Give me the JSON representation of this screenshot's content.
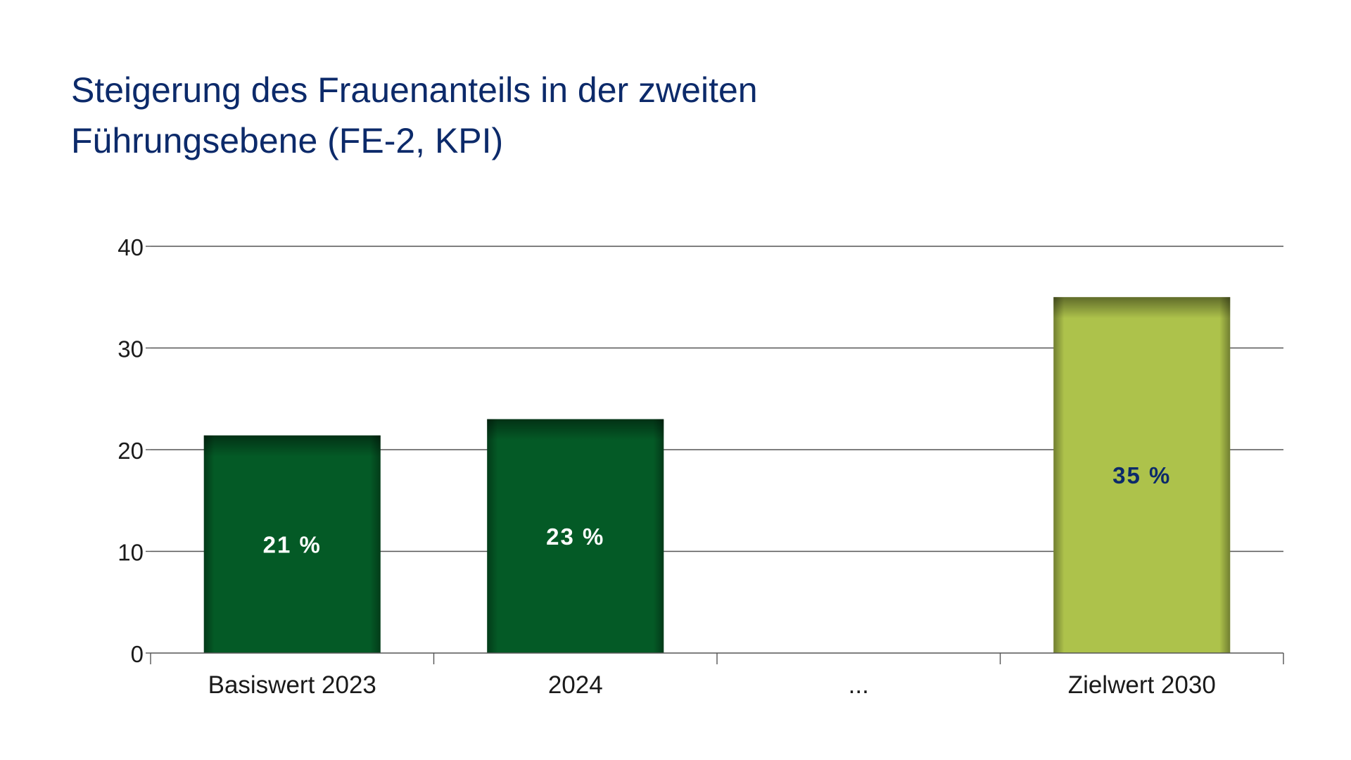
{
  "chart_data": {
    "type": "bar",
    "title": "Steigerung des Frauenanteils in der zweiten\nFührungsebene (FE-2, KPI)",
    "categories": [
      "Basiswert 2023",
      "2024",
      "...",
      "Zielwert 2030"
    ],
    "values": [
      21.4,
      23,
      null,
      35
    ],
    "data_labels": [
      "21 %",
      "23 %",
      "",
      "35 %"
    ],
    "ylim": [
      0,
      40
    ],
    "yticks": [
      0,
      10,
      20,
      30,
      40
    ],
    "ytick_labels": [
      "0",
      "10",
      "20",
      "30",
      "40"
    ],
    "xlabel": "",
    "ylabel": "",
    "grid": true,
    "legend": "none",
    "bar_colors": [
      "#045a26",
      "#045a26",
      "",
      "#adc24b"
    ],
    "label_colors": [
      "#ffffff",
      "#ffffff",
      "",
      "#0c2a6a"
    ]
  },
  "colors": {
    "title": "#0c2a6a",
    "axis_text": "#1a1a1a",
    "grid": "#555555"
  }
}
